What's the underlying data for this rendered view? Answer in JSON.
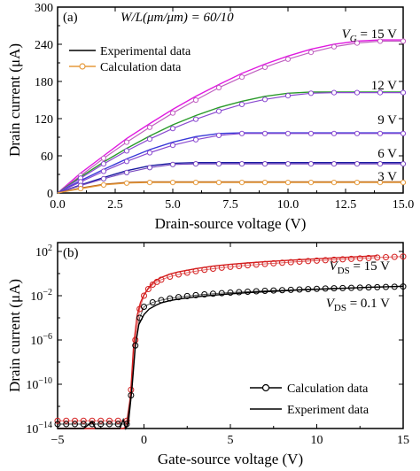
{
  "chart_data": [
    {
      "panel": "(a)",
      "type": "line",
      "title": "",
      "annotation": "W/L(μm/μm) = 60/10",
      "xlabel": "Drain-source voltage (V)",
      "ylabel": "Drain current (μA)",
      "xlim": [
        0,
        15
      ],
      "ylim": [
        0,
        300
      ],
      "xticks": [
        0.0,
        2.5,
        5.0,
        7.5,
        10.0,
        12.5,
        15.0
      ],
      "xtick_labels": [
        "0.0",
        "2.5",
        "5.0",
        "7.5",
        "10.0",
        "12.5",
        "15.0"
      ],
      "yticks": [
        0,
        60,
        120,
        180,
        240,
        300
      ],
      "ytick_labels": [
        "0",
        "60",
        "120",
        "180",
        "240",
        "300"
      ],
      "grid": false,
      "legend_position": "top-left",
      "legend": [
        {
          "label": "Experimental data",
          "style": "line",
          "color": "#000000"
        },
        {
          "label": "Calculation data",
          "style": "line-marker",
          "color": "#e69a3c"
        }
      ],
      "x": [
        0,
        1,
        2,
        3,
        4,
        5,
        6,
        7,
        8,
        9,
        10,
        11,
        12,
        13,
        14,
        15
      ],
      "series": [
        {
          "name": "V_G = 15 V",
          "label": "V_G = 15 V",
          "exp_color": "#e01ae0",
          "calc_color": "#c060c0",
          "experimental": [
            0,
            32,
            60,
            88,
            112,
            135,
            156,
            175,
            193,
            208,
            221,
            232,
            240,
            245,
            247,
            247
          ],
          "calculated": [
            0,
            28,
            56,
            82,
            106,
            129,
            150,
            170,
            187,
            203,
            216,
            227,
            236,
            242,
            245,
            245
          ]
        },
        {
          "name": "V_G = 12 V",
          "label": "12 V",
          "exp_color": "#2a9a2a",
          "calc_color": "#8a4ad0",
          "experimental": [
            0,
            26,
            50,
            72,
            92,
            110,
            125,
            138,
            148,
            156,
            161,
            163,
            163,
            163,
            163,
            163
          ],
          "calculated": [
            0,
            24,
            47,
            68,
            87,
            104,
            119,
            132,
            143,
            151,
            157,
            161,
            162,
            162,
            162,
            162
          ]
        },
        {
          "name": "V_G = 9 V",
          "label": "9 V",
          "exp_color": "#3a3ad8",
          "calc_color": "#8a4ad0",
          "experimental": [
            0,
            20,
            38,
            55,
            70,
            82,
            91,
            96,
            97,
            97,
            97,
            97,
            97,
            97,
            97,
            97
          ],
          "calculated": [
            0,
            18,
            35,
            51,
            65,
            77,
            86,
            93,
            96,
            96,
            96,
            96,
            96,
            96,
            96,
            96
          ]
        },
        {
          "name": "V_G = 6 V",
          "label": "6 V",
          "exp_color": "#1a1aa0",
          "calc_color": "#7a4ac0",
          "experimental": [
            0,
            13,
            25,
            36,
            44,
            48,
            49,
            49,
            49,
            49,
            49,
            49,
            49,
            49,
            49,
            49
          ],
          "calculated": [
            0,
            12,
            23,
            33,
            41,
            46,
            47,
            47,
            47,
            47,
            47,
            47,
            47,
            47,
            47,
            47
          ]
        },
        {
          "name": "V_G = 3 V",
          "label": "3 V",
          "exp_color": "#b05a10",
          "calc_color": "#e69a3c",
          "experimental": [
            0,
            8,
            14,
            17,
            18,
            18,
            18,
            18,
            18,
            18,
            18,
            18,
            18,
            18,
            18,
            18
          ],
          "calculated": [
            0,
            7,
            13,
            16,
            17,
            17,
            17,
            17,
            17,
            17,
            17,
            17,
            17,
            17,
            17,
            17
          ]
        }
      ]
    },
    {
      "panel": "(b)",
      "type": "line",
      "title": "",
      "xlabel": "Gate-source voltage (V)",
      "ylabel": "Drain current (μA)",
      "xlim": [
        -5,
        15
      ],
      "ylim_log10": [
        -14,
        2.8
      ],
      "yscale": "log",
      "xticks": [
        -5,
        0,
        5,
        10,
        15
      ],
      "xtick_labels": [
        "−5",
        "0",
        "5",
        "10",
        "15"
      ],
      "yticks_log10": [
        -14,
        -10,
        -6,
        -2,
        2
      ],
      "ytick_labels": [
        {
          "base": "10",
          "exp": "−14"
        },
        {
          "base": "10",
          "exp": "−10"
        },
        {
          "base": "10",
          "exp": "−6"
        },
        {
          "base": "10",
          "exp": "−2"
        },
        {
          "base": "10",
          "exp": "2"
        }
      ],
      "grid": false,
      "legend_position": "bottom-right",
      "legend": [
        {
          "label": "Calculation data",
          "style": "line-marker",
          "color": "#000000"
        },
        {
          "label": "Experiment data",
          "style": "line",
          "color": "#000000"
        }
      ],
      "series": [
        {
          "name": "V_DS = 15 V",
          "label_main": "V",
          "label_sub": "DS",
          "label_rest": " = 15 V",
          "color": "#d42020",
          "calculated_x": [
            -5,
            -4.5,
            -4,
            -3.5,
            -3,
            -2.5,
            -2,
            -1.5,
            -1,
            -0.75,
            -0.5,
            -0.25,
            0,
            0.25,
            0.5,
            0.75,
            1,
            1.5,
            2,
            2.5,
            3,
            3.5,
            4,
            4.5,
            5,
            5.5,
            6,
            6.5,
            7,
            7.5,
            8,
            8.5,
            9,
            9.5,
            10,
            10.5,
            11,
            11.5,
            12,
            12.5,
            13,
            13.5,
            14,
            14.5,
            15
          ],
          "calculated_log10": [
            -13.3,
            -13.3,
            -13.3,
            -13.3,
            -13.3,
            -13.3,
            -13.3,
            -13.3,
            -13.3,
            -10.5,
            -6.0,
            -3.2,
            -2.0,
            -1.4,
            -1.0,
            -0.75,
            -0.55,
            -0.28,
            -0.08,
            0.08,
            0.22,
            0.34,
            0.44,
            0.53,
            0.61,
            0.68,
            0.75,
            0.81,
            0.87,
            0.93,
            0.98,
            1.03,
            1.08,
            1.13,
            1.17,
            1.21,
            1.25,
            1.29,
            1.33,
            1.37,
            1.41,
            1.45,
            1.48,
            1.51,
            1.54
          ],
          "experimental_x": [
            -5,
            -4,
            -3.5,
            -3,
            -2.2,
            -1.5,
            -1.2,
            -1,
            -0.8,
            -0.6,
            -0.4,
            -0.2,
            0,
            0.3,
            0.6,
            1,
            1.5,
            2,
            3,
            4,
            5,
            6,
            7,
            8,
            9,
            10,
            11,
            12,
            13,
            13.5
          ],
          "experimental_log10": [
            -14,
            -14,
            -14,
            -14,
            -14,
            -14,
            -14,
            -13.8,
            -11.5,
            -6.5,
            -3.8,
            -2.6,
            -1.9,
            -1.2,
            -0.7,
            -0.35,
            -0.05,
            0.15,
            0.45,
            0.67,
            0.83,
            0.96,
            1.07,
            1.17,
            1.26,
            1.34,
            1.42,
            1.5,
            1.58,
            1.62
          ]
        },
        {
          "name": "V_DS = 0.1 V",
          "label_main": "V",
          "label_sub": "DS",
          "label_rest": " = 0.1 V",
          "color": "#000000",
          "calculated_x": [
            -5,
            -4.5,
            -4,
            -3.5,
            -3,
            -2.5,
            -2,
            -1.5,
            -1,
            -0.75,
            -0.5,
            -0.25,
            0,
            0.5,
            1,
            1.5,
            2,
            2.5,
            3,
            3.5,
            4,
            4.5,
            5,
            5.5,
            6,
            6.5,
            7,
            7.5,
            8,
            8.5,
            9,
            9.5,
            10,
            10.5,
            11,
            11.5,
            12,
            12.5,
            13,
            13.5,
            14,
            14.5,
            15
          ],
          "calculated_log10": [
            -13.6,
            -13.6,
            -13.6,
            -13.6,
            -13.6,
            -13.6,
            -13.6,
            -13.6,
            -13.6,
            -11.0,
            -6.5,
            -4.0,
            -3.0,
            -2.6,
            -2.4,
            -2.25,
            -2.13,
            -2.03,
            -1.95,
            -1.88,
            -1.82,
            -1.77,
            -1.72,
            -1.68,
            -1.64,
            -1.6,
            -1.56,
            -1.53,
            -1.5,
            -1.47,
            -1.44,
            -1.41,
            -1.38,
            -1.35,
            -1.33,
            -1.31,
            -1.29,
            -1.27,
            -1.25,
            -1.23,
            -1.21,
            -1.19,
            -1.17
          ],
          "experimental_x": [
            -5,
            -4.5,
            -4,
            -3.5,
            -3,
            -2.8,
            -2.6,
            -2.3,
            -2,
            -1.7,
            -1.4,
            -1.2,
            -1.05,
            -0.9,
            -0.7,
            -0.5,
            -0.3,
            0,
            0.3,
            0.7,
            1,
            1.5,
            2,
            3,
            4,
            5,
            6,
            7,
            8,
            9,
            10,
            11,
            12,
            13,
            14,
            15
          ],
          "experimental_log10": [
            -14,
            -14,
            -14,
            -14,
            -13.4,
            -14,
            -14,
            -14,
            -14,
            -14,
            -14,
            -13.2,
            -14,
            -13.5,
            -10.5,
            -6.5,
            -4.6,
            -3.7,
            -3.2,
            -2.85,
            -2.65,
            -2.45,
            -2.3,
            -2.1,
            -1.95,
            -1.83,
            -1.73,
            -1.64,
            -1.56,
            -1.49,
            -1.42,
            -1.36,
            -1.3,
            -1.24,
            -1.19,
            -1.14
          ]
        }
      ]
    }
  ]
}
